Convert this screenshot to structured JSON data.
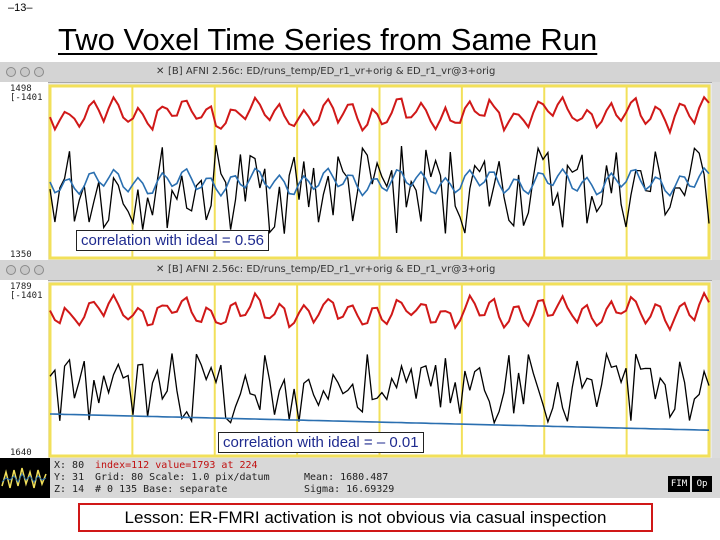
{
  "slide": {
    "number": "–13–",
    "title": "Two Voxel Time Series from Same Run"
  },
  "window1": {
    "title": "[B] AFNI 2.56c: ED/runs_temp/ED_r1_vr+orig & ED_r1_vr@3+orig",
    "y_top": "1498",
    "y_top_sub": "[-1401",
    "y_bottom": "1350",
    "correlation_label": "correlation with ideal = 0.56"
  },
  "window2": {
    "title": "[B] AFNI 2.56c: ED/runs_temp/ED_r1_vr+orig & ED_r1_vr@3+orig",
    "y_top": "1789",
    "y_top_sub": "[-1401",
    "y_bottom": "1640",
    "correlation_label": "correlation with ideal = – 0.01"
  },
  "status": {
    "row1_a": "X:  80",
    "row1_b": "index=112 value=1793 at 224",
    "row2_a": "Y:  31",
    "row2_b": "Grid:  80  Scale: 1.0 pix/datum",
    "row2_c": "Mean:   1680.487",
    "row3_a": "Z:  14",
    "row3_b": "#    0 135   Base: separate",
    "row3_c": "Sigma:   16.69329",
    "btn1": "FIM",
    "btn2": "Op"
  },
  "lesson": "Lesson: ER-FMRI activation is not obvious via casual inspection",
  "colors": {
    "ideal": "#d01818",
    "voxel": "#000000",
    "fit": "#2a6fb0",
    "grid": "#f2e05a",
    "frame": "#f2e05a"
  }
}
